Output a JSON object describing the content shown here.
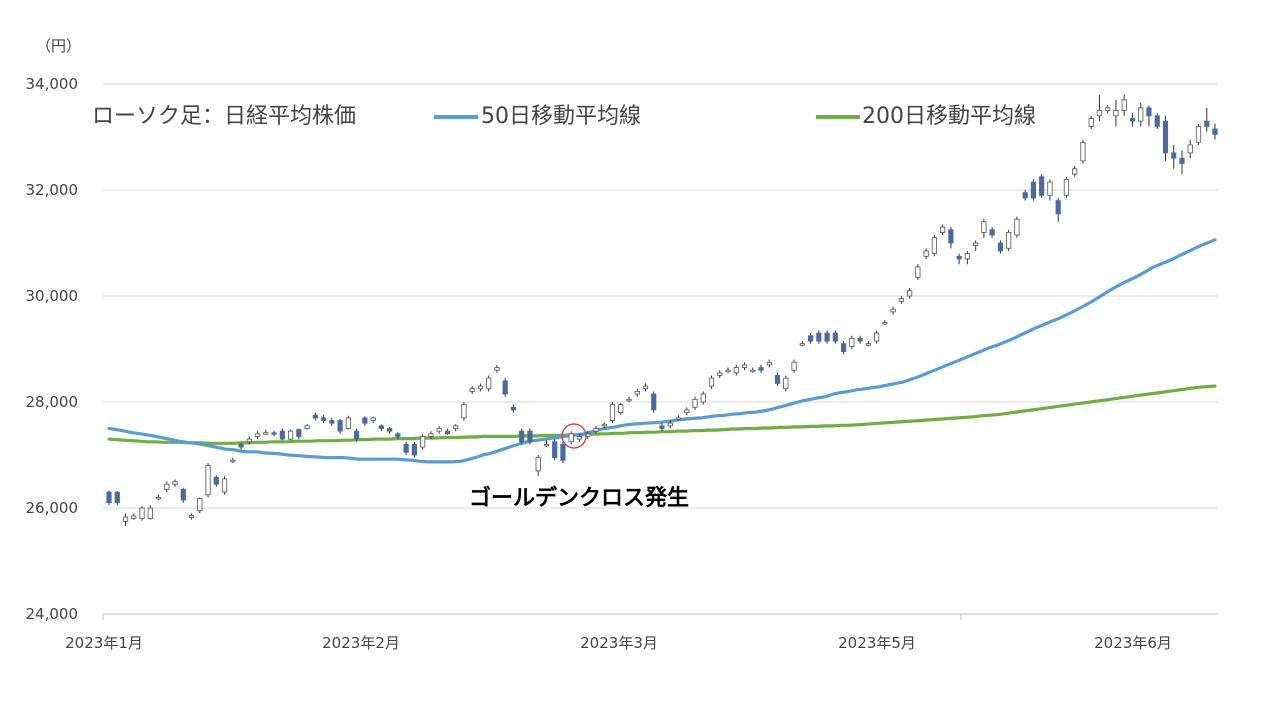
{
  "chart_data": {
    "type": "candlestick",
    "unit_label": "（円）",
    "y_ticks": [
      "34,000",
      "32,000",
      "30,000",
      "28,000",
      "26,000",
      "24,000"
    ],
    "y_tick_values": [
      34000,
      32000,
      30000,
      28000,
      26000,
      24000
    ],
    "ylim": [
      24000,
      34000
    ],
    "x_tick_labels": [
      "2023年1月",
      "2023年2月",
      "2023年3月",
      "2023年5月",
      "2023年6月"
    ],
    "grid": "horizontal",
    "legend_position": "top",
    "legend": [
      {
        "name": "ローソク足：日経平均株価",
        "kind": "candle"
      },
      {
        "name": "50日移動平均線",
        "kind": "line",
        "color": "#5b9bd5"
      },
      {
        "name": "200日移動平均線",
        "kind": "line",
        "color": "#70ad47"
      }
    ],
    "annotation": "ゴールデンクロス発生",
    "colors": {
      "ma50": "#5b9bd5",
      "ma200": "#70ad47",
      "candle_down": "#4a6aa3",
      "candle_up": "#ffffff",
      "wick": "#333333",
      "grid": "#d9d9d9",
      "marker": "#e03030"
    },
    "candles": [
      [
        26300,
        26100,
        26330,
        26050
      ],
      [
        26300,
        26100,
        26320,
        26050
      ],
      [
        25750,
        25830,
        25900,
        25660
      ],
      [
        25800,
        25850,
        25900,
        25780
      ],
      [
        25800,
        26000,
        26040,
        25760
      ],
      [
        25800,
        26000,
        26050,
        25780
      ],
      [
        26200,
        26200,
        26250,
        26150
      ],
      [
        26350,
        26450,
        26500,
        26300
      ],
      [
        26450,
        26500,
        26540,
        26400
      ],
      [
        26350,
        26150,
        26380,
        26100
      ],
      [
        25820,
        25860,
        25900,
        25780
      ],
      [
        25950,
        26180,
        26200,
        25900
      ],
      [
        26250,
        26800,
        26850,
        26200
      ],
      [
        26580,
        26450,
        26620,
        26400
      ],
      [
        26300,
        26550,
        26600,
        26250
      ],
      [
        26900,
        26900,
        26950,
        26850
      ],
      [
        27200,
        27150,
        27230,
        27100
      ],
      [
        27250,
        27300,
        27350,
        27200
      ],
      [
        27350,
        27400,
        27450,
        27300
      ],
      [
        27400,
        27420,
        27480,
        27380
      ],
      [
        27420,
        27400,
        27460,
        27350
      ],
      [
        27450,
        27300,
        27500,
        27280
      ],
      [
        27300,
        27450,
        27480,
        27280
      ],
      [
        27480,
        27350,
        27500,
        27300
      ],
      [
        27500,
        27550,
        27580,
        27480
      ],
      [
        27750,
        27700,
        27800,
        27650
      ],
      [
        27700,
        27650,
        27760,
        27600
      ],
      [
        27650,
        27600,
        27700,
        27550
      ],
      [
        27650,
        27450,
        27680,
        27400
      ],
      [
        27500,
        27700,
        27740,
        27480
      ],
      [
        27450,
        27300,
        27500,
        27250
      ],
      [
        27700,
        27600,
        27730,
        27550
      ],
      [
        27650,
        27700,
        27720,
        27600
      ],
      [
        27550,
        27500,
        27580,
        27450
      ],
      [
        27500,
        27450,
        27530,
        27400
      ],
      [
        27400,
        27350,
        27430,
        27300
      ],
      [
        27200,
        27050,
        27250,
        27000
      ],
      [
        27200,
        27000,
        27250,
        26950
      ],
      [
        27150,
        27350,
        27400,
        27100
      ],
      [
        27350,
        27400,
        27450,
        27300
      ],
      [
        27450,
        27500,
        27550,
        27400
      ],
      [
        27450,
        27400,
        27500,
        27380
      ],
      [
        27500,
        27550,
        27580,
        27450
      ],
      [
        27700,
        27950,
        28000,
        27650
      ],
      [
        28200,
        28250,
        28300,
        28150
      ],
      [
        28250,
        28300,
        28350,
        28200
      ],
      [
        28250,
        28450,
        28500,
        28200
      ],
      [
        28600,
        28650,
        28700,
        28550
      ],
      [
        28400,
        28150,
        28450,
        28100
      ],
      [
        27900,
        27850,
        27950,
        27800
      ],
      [
        27450,
        27250,
        27500,
        27200
      ],
      [
        27450,
        27250,
        27500,
        27200
      ],
      [
        26700,
        26950,
        27000,
        26600
      ],
      [
        27200,
        27200,
        27280,
        27150
      ],
      [
        27250,
        26950,
        27300,
        26900
      ],
      [
        27200,
        26900,
        27250,
        26850
      ],
      [
        27250,
        27400,
        27450,
        27200
      ],
      [
        27300,
        27350,
        27400,
        27250
      ],
      [
        27350,
        27400,
        27450,
        27300
      ],
      [
        27450,
        27500,
        27550,
        27400
      ],
      [
        27550,
        27580,
        27620,
        27500
      ],
      [
        27650,
        27950,
        28000,
        27600
      ],
      [
        27800,
        27950,
        27980,
        27750
      ],
      [
        28050,
        28050,
        28100,
        28000
      ],
      [
        28150,
        28200,
        28250,
        28100
      ],
      [
        28250,
        28300,
        28350,
        28200
      ],
      [
        28150,
        27850,
        28200,
        27800
      ],
      [
        27550,
        27500,
        27600,
        27450
      ],
      [
        27550,
        27600,
        27650,
        27500
      ],
      [
        27700,
        27700,
        27750,
        27650
      ],
      [
        27800,
        27850,
        27900,
        27750
      ],
      [
        27900,
        28050,
        28100,
        27850
      ],
      [
        28000,
        28150,
        28200,
        27950
      ],
      [
        28300,
        28450,
        28500,
        28250
      ],
      [
        28500,
        28550,
        28600,
        28450
      ],
      [
        28600,
        28600,
        28650,
        28550
      ],
      [
        28550,
        28650,
        28700,
        28500
      ],
      [
        28650,
        28700,
        28750,
        28600
      ],
      [
        28600,
        28600,
        28650,
        28550
      ],
      [
        28650,
        28600,
        28700,
        28550
      ],
      [
        28700,
        28750,
        28800,
        28650
      ],
      [
        28500,
        28350,
        28550,
        28300
      ],
      [
        28250,
        28450,
        28500,
        28200
      ],
      [
        28600,
        28750,
        28800,
        28550
      ],
      [
        29100,
        29100,
        29150,
        29050
      ],
      [
        29250,
        29150,
        29300,
        29100
      ],
      [
        29300,
        29150,
        29350,
        29100
      ],
      [
        29300,
        29150,
        29350,
        29100
      ],
      [
        29300,
        29150,
        29350,
        29100
      ],
      [
        29100,
        28950,
        29150,
        28900
      ],
      [
        29050,
        29200,
        29250,
        29000
      ],
      [
        29200,
        29150,
        29250,
        29100
      ],
      [
        29100,
        29100,
        29150,
        29050
      ],
      [
        29150,
        29300,
        29350,
        29100
      ],
      [
        29500,
        29500,
        29550,
        29450
      ],
      [
        29700,
        29750,
        29800,
        29650
      ],
      [
        29900,
        29950,
        30000,
        29850
      ],
      [
        30000,
        30100,
        30150,
        29950
      ],
      [
        30350,
        30550,
        30600,
        30300
      ],
      [
        30750,
        30850,
        30900,
        30700
      ],
      [
        30800,
        31100,
        31150,
        30750
      ],
      [
        31200,
        31300,
        31350,
        31150
      ],
      [
        31250,
        31000,
        31300,
        30900
      ],
      [
        30750,
        30700,
        30800,
        30600
      ],
      [
        30700,
        30800,
        30850,
        30600
      ],
      [
        30950,
        31000,
        31050,
        30850
      ],
      [
        31200,
        31400,
        31450,
        31100
      ],
      [
        31250,
        31150,
        31300,
        31100
      ],
      [
        31000,
        30850,
        31050,
        30800
      ],
      [
        30900,
        31200,
        31250,
        30850
      ],
      [
        31150,
        31450,
        31500,
        31100
      ],
      [
        31950,
        31850,
        32000,
        31800
      ],
      [
        32150,
        31850,
        32200,
        31800
      ],
      [
        32250,
        31900,
        32300,
        31850
      ],
      [
        31900,
        32150,
        32200,
        31800
      ],
      [
        31800,
        31550,
        31850,
        31400
      ],
      [
        31900,
        32200,
        32250,
        31850
      ],
      [
        32300,
        32400,
        32450,
        32250
      ],
      [
        32550,
        32900,
        32950,
        32500
      ],
      [
        33200,
        33350,
        33400,
        33150
      ],
      [
        33400,
        33500,
        33800,
        33300
      ],
      [
        33500,
        33550,
        33600,
        33450
      ],
      [
        33400,
        33500,
        33700,
        33200
      ],
      [
        33500,
        33700,
        33800,
        33400
      ],
      [
        33350,
        33300,
        33450,
        33200
      ],
      [
        33300,
        33550,
        33650,
        33200
      ],
      [
        33550,
        33400,
        33600,
        33200
      ],
      [
        33400,
        33200,
        33450,
        33150
      ],
      [
        33300,
        32700,
        33400,
        32550
      ],
      [
        32700,
        32600,
        32850,
        32400
      ],
      [
        32600,
        32500,
        32750,
        32300
      ],
      [
        32700,
        32850,
        32950,
        32600
      ],
      [
        32900,
        33200,
        33250,
        32850
      ],
      [
        33300,
        33200,
        33550,
        33100
      ],
      [
        33150,
        33050,
        33250,
        32950
      ]
    ],
    "ma50": [
      [
        27500,
        27480,
        27450,
        27420,
        27400,
        27380,
        27350,
        27320,
        27290,
        27260,
        27240,
        27220,
        27200,
        27170,
        27140,
        27110,
        27100,
        27070,
        27060,
        27060,
        27040,
        27030,
        27020,
        27000,
        26990,
        26980,
        26970,
        26960,
        26950,
        26950,
        26950,
        26940,
        26920,
        26920,
        26920,
        26920,
        26920,
        26920,
        26910,
        26900,
        26880,
        26870,
        26870,
        26870,
        26870,
        26880,
        26910,
        26950,
        27000,
        27030,
        27080,
        27130,
        27180,
        27220,
        27260,
        27280,
        27300,
        27320,
        27340,
        27360,
        27380,
        27400,
        27440,
        27480,
        27510,
        27530,
        27560,
        27580,
        27590,
        27600,
        27610,
        27620,
        27640,
        27660,
        27680,
        27690,
        27700,
        27720,
        27740,
        27750,
        27770,
        27780,
        27800,
        27810,
        27830,
        27860,
        27900,
        27940,
        27980,
        28020,
        28050,
        28080,
        28100,
        28150,
        28180,
        28200,
        28230,
        28250,
        28270,
        28290,
        28320,
        28350,
        28380,
        28430,
        28480,
        28540,
        28600,
        28660,
        28720,
        28780,
        28840,
        28900,
        28960,
        29020,
        29070,
        29130,
        29190,
        29260,
        29330,
        29400,
        29460,
        29520,
        29580,
        29650,
        29720,
        29800,
        29880,
        29970,
        30060,
        30150,
        30230,
        30300,
        30370,
        30450,
        30540,
        30600,
        30660,
        30730,
        30800,
        30870,
        30940,
        31000,
        31060
      ]
    ],
    "ma200": [
      [
        27300,
        27290,
        27280,
        27270,
        27260,
        27250,
        27250,
        27240,
        27240,
        27240,
        27230,
        27230,
        27230,
        27220,
        27220,
        27220,
        27220,
        27230,
        27230,
        27240,
        27240,
        27250,
        27250,
        27250,
        27260,
        27260,
        27260,
        27270,
        27270,
        27270,
        27280,
        27280,
        27290,
        27290,
        27300,
        27300,
        27300,
        27310,
        27310,
        27310,
        27320,
        27320,
        27320,
        27330,
        27330,
        27330,
        27340,
        27340,
        27350,
        27350,
        27350,
        27350,
        27350,
        27360,
        27360,
        27360,
        27370,
        27370,
        27370,
        27380,
        27380,
        27390,
        27390,
        27400,
        27400,
        27410,
        27410,
        27420,
        27420,
        27430,
        27430,
        27440,
        27440,
        27450,
        27450,
        27460,
        27460,
        27470,
        27470,
        27480,
        27490,
        27490,
        27500,
        27500,
        27510,
        27510,
        27520,
        27520,
        27530,
        27530,
        27540,
        27540,
        27550,
        27550,
        27560,
        27560,
        27570,
        27580,
        27590,
        27600,
        27610,
        27620,
        27630,
        27640,
        27650,
        27660,
        27670,
        27680,
        27690,
        27700,
        27710,
        27720,
        27740,
        27750,
        27760,
        27780,
        27800,
        27820,
        27840,
        27860,
        27880,
        27900,
        27920,
        27940,
        27960,
        27980,
        28000,
        28020,
        28040,
        28060,
        28080,
        28100,
        28120,
        28140,
        28160,
        28180,
        28200,
        28220,
        28240,
        28260,
        28280,
        28290,
        28300
      ]
    ]
  }
}
